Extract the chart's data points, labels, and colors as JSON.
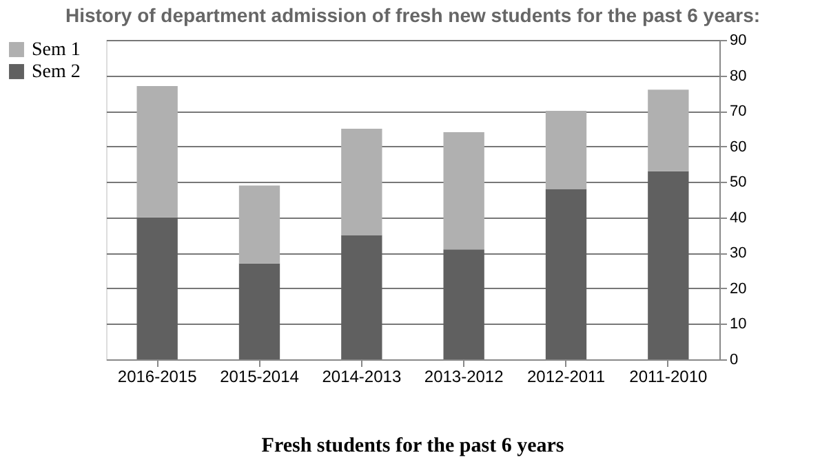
{
  "chart_data": {
    "type": "bar",
    "stacked": true,
    "title": "History of department admission of fresh new students for the past 6 years:",
    "categories": [
      "2016-2015",
      "2015-2014",
      "2014-2013",
      "2013-2012",
      "2012-2011",
      "2011-2010"
    ],
    "series": [
      {
        "name": "Sem 2",
        "color": "#606060",
        "values": [
          40,
          27,
          35,
          31,
          48,
          53
        ]
      },
      {
        "name": "Sem 1",
        "color": "#b0b0b0",
        "values": [
          37,
          22,
          30,
          33,
          22,
          23
        ]
      }
    ],
    "ylim": [
      0,
      90
    ],
    "yticks": [
      0,
      10,
      20,
      30,
      40,
      50,
      60,
      70,
      80,
      90
    ],
    "grid": "y",
    "legend": "left",
    "annotations": [
      "Fresh students for the past 6 years"
    ]
  }
}
